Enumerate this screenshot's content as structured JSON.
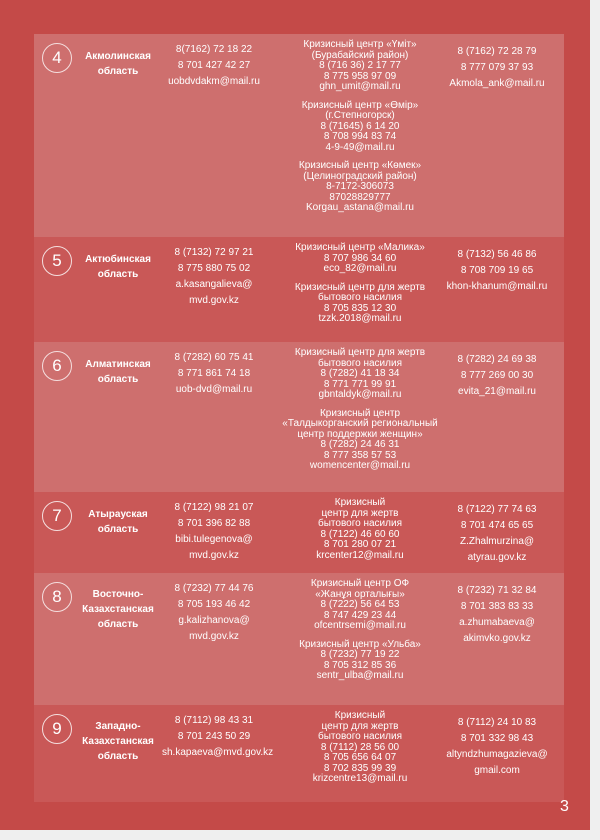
{
  "page_number": "3",
  "rows": [
    {
      "num": "4",
      "region": [
        "Акмолинская",
        "область"
      ],
      "police": [
        "8(7162) 72 18 22",
        "8 701 427 42 27",
        "uobdvdakm@mail.ru"
      ],
      "centers": [
        [
          "Кризисный центр «Үміт»",
          "(Бурабайский район)",
          "8 (716 36) 2 17 77",
          "8 775 958 97 09",
          "ghn_umit@mail.ru"
        ],
        [
          "Кризисный центр «Өмір»",
          "(г.Степногорск)",
          "8 (71645) 6 14 20",
          "8 708 994 83 74",
          "4-9-49@mail.ru"
        ],
        [
          "Кризисный центр «Көмек»",
          "(Целиноградский район)",
          "8-7172-306073",
          "87028829777",
          "Korgau_astana@mail.ru"
        ]
      ],
      "akimat": [
        "8 (7162) 72 28 79",
        "8 777 079 37 93",
        "Akmola_ank@mail.ru"
      ]
    },
    {
      "num": "5",
      "region": [
        "Актюбинская",
        "область"
      ],
      "police": [
        "8 (7132) 72 97 21",
        "8 775 880 75 02",
        "a.kasangalieva@",
        "mvd.gov.kz"
      ],
      "centers": [
        [
          "Кризисный центр «Малика»",
          "8 707 986 34 60",
          "eco_82@mail.ru"
        ],
        [
          "Кризисный центр для жертв",
          "бытового насилия",
          "8 705 835 12 30",
          "tzzk.2018@mail.ru"
        ]
      ],
      "akimat": [
        "8 (7132) 56 46 86",
        "8 708 709 19 65",
        "khon-khanum@mail.ru"
      ]
    },
    {
      "num": "6",
      "region": [
        "Алматинская",
        "область"
      ],
      "police": [
        "8 (7282) 60 75 41",
        "8 771 861 74 18",
        "uob-dvd@mail.ru"
      ],
      "centers": [
        [
          "Кризисный центр для жертв",
          "бытового насилия",
          "8 (7282) 41 18 34",
          "8 771 771 99 91",
          "gbntaldyk@mail.ru"
        ],
        [
          "Кризисный центр",
          "«Талдыкорганский региональный",
          "центр поддержки женщин»",
          "8 (7282) 24 46 31",
          "8 777 358 57 53",
          "womencenter@mail.ru"
        ]
      ],
      "akimat": [
        "8 (7282) 24 69 38",
        "8 777 269 00 30",
        "evita_21@mail.ru"
      ]
    },
    {
      "num": "7",
      "region": [
        "Атырауская",
        "область"
      ],
      "police": [
        "8 (7122) 98 21 07",
        "8 701 396 82 88",
        "bibi.tulegenova@",
        "mvd.gov.kz"
      ],
      "centers": [
        [
          "Кризисный",
          "центр для жертв",
          "бытового насилия",
          "8 (7122) 46 60 60",
          "8 701 280 07 21",
          "krcenter12@mail.ru"
        ]
      ],
      "akimat": [
        "8 (7122) 77 74 63",
        "8 701 474 65 65",
        "Z.Zhalmurzina@",
        "atyrau.gov.kz"
      ]
    },
    {
      "num": "8",
      "region": [
        "Восточно-",
        "Казахстанская",
        "область"
      ],
      "police": [
        "8 (7232) 77 44 76",
        "8 705 193 46 42",
        "g.kalizhanova@",
        "mvd.gov.kz"
      ],
      "centers": [
        [
          "Кризисный центр ОФ",
          "«Жанұя орталығы»",
          "8 (7222) 56 64 53",
          "8 747 429 23 44",
          "ofcentrsemi@mail.ru"
        ],
        [
          "Кризисный центр «Ульба»",
          "8 (7232) 77 19 22",
          "8 705 312 85 36",
          "sentr_ulba@mail.ru"
        ]
      ],
      "akimat": [
        "8 (7232) 71 32 84",
        "8 701 383 83 33",
        "a.zhumabaeva@",
        "akimvko.gov.kz"
      ]
    },
    {
      "num": "9",
      "region": [
        "Западно-",
        "Казахстанская",
        "область"
      ],
      "police": [
        "8 (7112) 98 43 31",
        "8 701 243 50 29",
        "sh.kapaeva@mvd.gov.kz"
      ],
      "centers": [
        [
          "Кризисный",
          "центр для жертв",
          "бытового насилия",
          "8 (7112) 28 56 00",
          "8 705 656 64 07",
          "8 702 835 99 39",
          "krizcentre13@mail.ru"
        ]
      ],
      "akimat": [
        "8 (7112) 24 10 83",
        "8 701 332 98 43",
        "altyndzhumagazieva@",
        "gmail.com"
      ]
    }
  ]
}
